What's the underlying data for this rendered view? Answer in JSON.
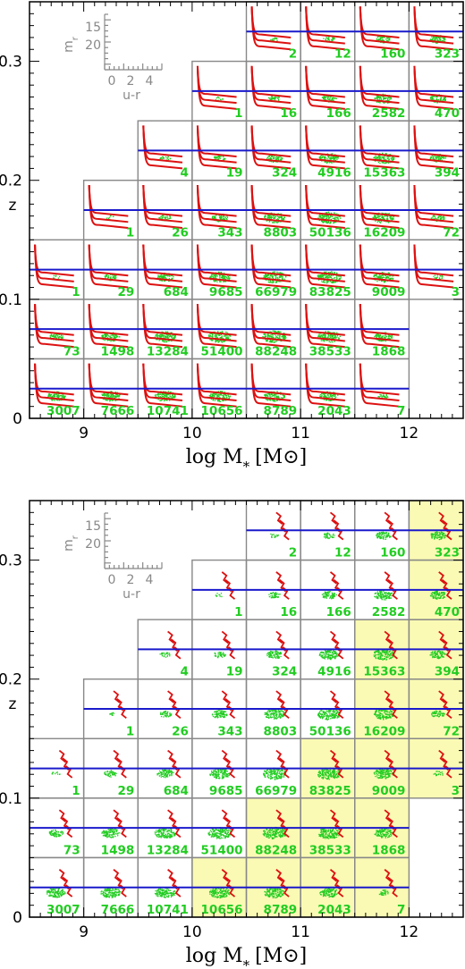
{
  "chart_data": [
    {
      "type": "grid-of-color-magnitude-panels",
      "xlabel": "log M",
      "xlabel_sub": "*",
      "xlabel_unit_pre": "[M",
      "xlabel_unit_post": "]",
      "ylabel": "z",
      "xlim": [
        8.5,
        12.5
      ],
      "ylim": [
        0,
        0.35
      ],
      "xticks": [
        9,
        10,
        11,
        12
      ],
      "yticks": [
        0,
        0.1,
        0.2,
        0.3
      ],
      "xtick_labels": [
        "9",
        "10",
        "11",
        "12"
      ],
      "ytick_labels": [
        "0",
        "0.1",
        "0.2",
        "0.3"
      ],
      "mass_bins": [
        [
          8.5,
          9
        ],
        [
          9,
          9.5
        ],
        [
          9.5,
          10
        ],
        [
          10,
          10.5
        ],
        [
          10.5,
          11
        ],
        [
          11,
          11.5
        ],
        [
          11.5,
          12
        ],
        [
          12,
          12.5
        ]
      ],
      "z_bins": [
        [
          0,
          0.05
        ],
        [
          0.05,
          0.1
        ],
        [
          0.1,
          0.15
        ],
        [
          0.15,
          0.2
        ],
        [
          0.2,
          0.25
        ],
        [
          0.25,
          0.3
        ],
        [
          0.3,
          0.35
        ]
      ],
      "counts": [
        [
          "3007",
          "7666",
          "10741",
          "10656",
          "8789",
          "2043",
          "7",
          null
        ],
        [
          "73",
          "1498",
          "13284",
          "51400",
          "88248",
          "38533",
          "1868",
          null
        ],
        [
          "1",
          "29",
          "684",
          "9685",
          "66979",
          "83825",
          "9009",
          "3"
        ],
        [
          null,
          "1",
          "26",
          "343",
          "8803",
          "50136",
          "16209",
          "72"
        ],
        [
          null,
          null,
          "4",
          "19",
          "324",
          "4916",
          "15363",
          "394"
        ],
        [
          null,
          null,
          null,
          "1",
          "16",
          "166",
          "2582",
          "470"
        ],
        [
          null,
          null,
          null,
          null,
          "2",
          "12",
          "160",
          "323"
        ]
      ],
      "magnitude_limit_lines_z": [
        0.025,
        0.075,
        0.125,
        0.175,
        0.225,
        0.275,
        0.325
      ],
      "highlighted_cells": [],
      "inset_key": {
        "ylabel": "m",
        "ylabel_sub": "r",
        "yticks": [
          "15",
          "20"
        ],
        "xlabel": "u-r",
        "xticks": [
          "0",
          "2",
          "4"
        ]
      }
    },
    {
      "type": "grid-of-color-magnitude-panels",
      "xlabel": "log M",
      "xlabel_sub": "*",
      "xlabel_unit_pre": "[M",
      "xlabel_unit_post": "]",
      "ylabel": "z",
      "xlim": [
        8.5,
        12.5
      ],
      "ylim": [
        0,
        0.35
      ],
      "xticks": [
        9,
        10,
        11,
        12
      ],
      "yticks": [
        0,
        0.1,
        0.2,
        0.3
      ],
      "xtick_labels": [
        "9",
        "10",
        "11",
        "12"
      ],
      "ytick_labels": [
        "0",
        "0.1",
        "0.2",
        "0.3"
      ],
      "mass_bins": [
        [
          8.5,
          9
        ],
        [
          9,
          9.5
        ],
        [
          9.5,
          10
        ],
        [
          10,
          10.5
        ],
        [
          10.5,
          11
        ],
        [
          11,
          11.5
        ],
        [
          11.5,
          12
        ],
        [
          12,
          12.5
        ]
      ],
      "z_bins": [
        [
          0,
          0.05
        ],
        [
          0.05,
          0.1
        ],
        [
          0.1,
          0.15
        ],
        [
          0.15,
          0.2
        ],
        [
          0.2,
          0.25
        ],
        [
          0.25,
          0.3
        ],
        [
          0.3,
          0.35
        ]
      ],
      "counts": [
        [
          "3007",
          "7666",
          "10741",
          "10656",
          "8789",
          "2043",
          "7",
          null
        ],
        [
          "73",
          "1498",
          "13284",
          "51400",
          "88248",
          "38533",
          "1868",
          null
        ],
        [
          "1",
          "29",
          "684",
          "9685",
          "66979",
          "83825",
          "9009",
          "3"
        ],
        [
          null,
          "1",
          "26",
          "343",
          "8803",
          "50136",
          "16209",
          "72"
        ],
        [
          null,
          null,
          "4",
          "19",
          "324",
          "4916",
          "15363",
          "394"
        ],
        [
          null,
          null,
          null,
          "1",
          "16",
          "166",
          "2582",
          "470"
        ],
        [
          null,
          null,
          null,
          null,
          "2",
          "12",
          "160",
          "323"
        ]
      ],
      "magnitude_limit_lines_z": [
        0.025,
        0.075,
        0.125,
        0.175,
        0.225,
        0.275,
        0.325
      ],
      "highlighted_cells": [
        [
          0,
          3
        ],
        [
          0,
          4
        ],
        [
          0,
          5
        ],
        [
          0,
          6
        ],
        [
          1,
          4
        ],
        [
          1,
          5
        ],
        [
          1,
          6
        ],
        [
          2,
          5
        ],
        [
          2,
          6
        ],
        [
          2,
          7
        ],
        [
          3,
          6
        ],
        [
          3,
          7
        ],
        [
          4,
          6
        ],
        [
          4,
          7
        ],
        [
          5,
          7
        ],
        [
          6,
          7
        ]
      ],
      "inset_key": {
        "ylabel": "m",
        "ylabel_sub": "r",
        "yticks": [
          "15",
          "20"
        ],
        "xlabel": "u-r",
        "xticks": [
          "0",
          "2",
          "4"
        ]
      }
    }
  ],
  "colors": {
    "grid": "#888888",
    "limit_line": "#1a1acc",
    "model_tracks": "#dd1111",
    "points": "#22cc22",
    "counts": "#22cc22",
    "highlight": "#fafab4",
    "key": "#888888"
  }
}
